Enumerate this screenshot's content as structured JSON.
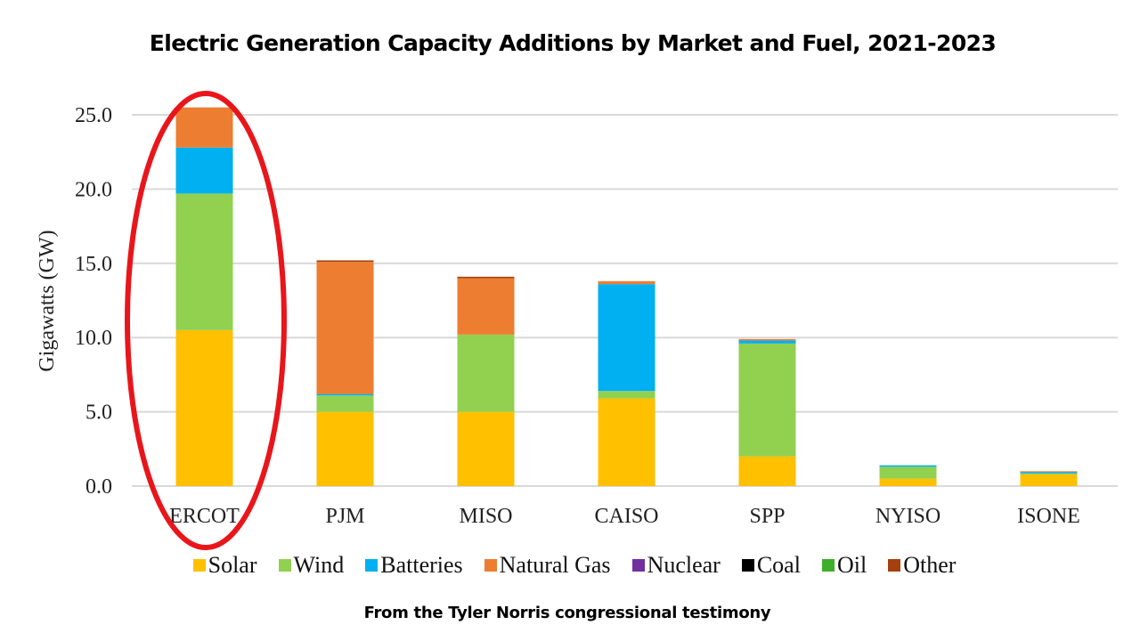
{
  "title": "Electric Generation Capacity Additions by Market and Fuel, 2021-2023",
  "caption": "From the Tyler Norris congressional testimony",
  "highlight": {
    "category": "ERCOT",
    "shape": "ellipse",
    "color": "#e8161b"
  },
  "chart_data": {
    "type": "bar",
    "stacked": true,
    "title": "Electric Generation Capacity Additions by Market and Fuel, 2021-2023",
    "xlabel": "",
    "ylabel": "Gigawatts (GW)",
    "ylim": [
      0,
      25
    ],
    "yticks": [
      "0.0",
      "5.0",
      "10.0",
      "15.0",
      "20.0",
      "25.0"
    ],
    "grid": true,
    "legend_position": "bottom",
    "categories": [
      "ERCOT",
      "PJM",
      "MISO",
      "CAISO",
      "SPP",
      "NYISO",
      "ISONE"
    ],
    "series": [
      {
        "name": "Solar",
        "color": "#ffc000",
        "values": [
          10.5,
          5.0,
          5.0,
          5.9,
          2.0,
          0.5,
          0.8
        ]
      },
      {
        "name": "Wind",
        "color": "#92d050",
        "values": [
          9.2,
          1.1,
          5.2,
          0.5,
          7.6,
          0.8,
          0.05
        ]
      },
      {
        "name": "Batteries",
        "color": "#00b0f0",
        "values": [
          3.1,
          0.1,
          0.0,
          7.2,
          0.2,
          0.1,
          0.1
        ]
      },
      {
        "name": "Natural Gas",
        "color": "#ed7d31",
        "values": [
          2.7,
          8.9,
          3.8,
          0.2,
          0.1,
          0.0,
          0.05
        ]
      },
      {
        "name": "Nuclear",
        "color": "#7030a0",
        "values": [
          0,
          0,
          0,
          0,
          0,
          0,
          0
        ]
      },
      {
        "name": "Coal",
        "color": "#000000",
        "values": [
          0,
          0,
          0,
          0,
          0,
          0,
          0
        ]
      },
      {
        "name": "Oil",
        "color": "#3fae2a",
        "values": [
          0,
          0,
          0,
          0,
          0,
          0,
          0
        ]
      },
      {
        "name": "Other",
        "color": "#a5410f",
        "values": [
          0.0,
          0.1,
          0.1,
          0.0,
          0.0,
          0.0,
          0.0
        ]
      }
    ]
  }
}
